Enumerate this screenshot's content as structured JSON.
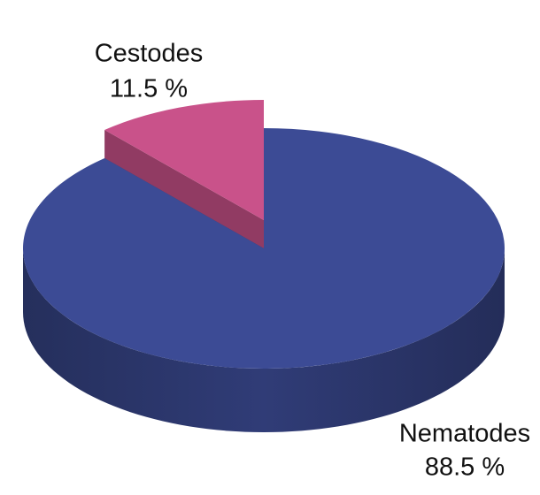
{
  "chart_data": {
    "type": "pie",
    "categories": [
      "Nematodes",
      "Cestodes"
    ],
    "values": [
      88.5,
      11.5
    ],
    "value_labels": [
      "88.5 %",
      "11.5 %"
    ],
    "colors": [
      "#3c4b95",
      "#c9528a"
    ]
  }
}
